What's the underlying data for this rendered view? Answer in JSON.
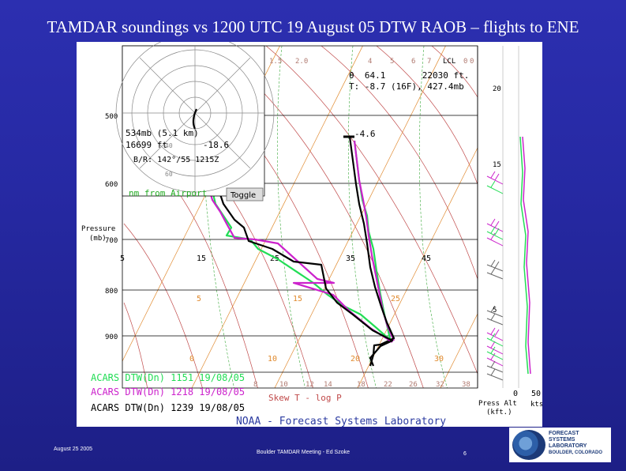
{
  "slide": {
    "title": "TAMDAR soundings vs 1200 UTC 19 August 05 DTW RAOB – flights to ENE",
    "footer_date": "August 25 2005",
    "footer_center": "Boulder TAMDAR Meeting - Ed Szoke",
    "page_number": "6",
    "logo_lines": [
      "FORECAST",
      "SYSTEMS",
      "LABORATORY",
      "BOULDER, COLORADO"
    ]
  },
  "skewt": {
    "pressure_label_line1": "Pressure",
    "pressure_label_line2": "(mb)",
    "pressure_ticks": [
      "500",
      "600",
      "700",
      "800",
      "900"
    ],
    "top_mixing_labels": [
      "1.5",
      "2.0",
      "4",
      "5",
      "6",
      "7",
      "LCL",
      "0",
      "0"
    ],
    "isotherm_labels": [
      "5",
      "15",
      "25",
      "35",
      "45",
      "5",
      "15",
      "25",
      "0",
      "10",
      "20",
      "30"
    ],
    "bottom_mixing_labels": [
      "8",
      "10",
      "12",
      "14",
      "18",
      "22",
      "26",
      "32",
      "38"
    ],
    "right_alt_labels": [
      "20",
      "15",
      "5"
    ],
    "info_line1": "θ  64.1       22030 ft.",
    "info_line2": "T: -8.7 (16F), 427.4mb",
    "point_temp": "-4.6",
    "hodo_line1": "534mb (5.1 km)",
    "hodo_line2": "16699 ft",
    "hodo_line2_b": "-18.6",
    "hodo_line3": "B/R: 142°/55 1215Z",
    "hodo_ring_labels": [
      "40",
      "60"
    ],
    "nm_from_airport": "nm from Airport",
    "toggle_label": "Toggle",
    "legend": [
      {
        "label": "ACARS DTW(Dn) 1151 19/08/05",
        "color": "#22dd55"
      },
      {
        "label": "ACARS DTW(Dn) 1218 19/08/05",
        "color": "#cc22cc"
      },
      {
        "label": "ACARS DTW(Dn) 1239 19/08/05",
        "color": "#000000"
      }
    ],
    "skew_label": "Skew T - log P",
    "noaa_label": "NOAA - Forecast Systems Laboratory",
    "press_alt_line1": "Press Alt",
    "press_alt_line2": "(kft.)",
    "zero_label": "0",
    "fifty_label": "50",
    "kts_label": "kts",
    "colors": {
      "green": "#22dd55",
      "magenta": "#cc22cc",
      "black": "#000000",
      "isotherm": "#e08a2e",
      "dryadiabat": "#c04a4a",
      "grid": "#000000"
    }
  }
}
